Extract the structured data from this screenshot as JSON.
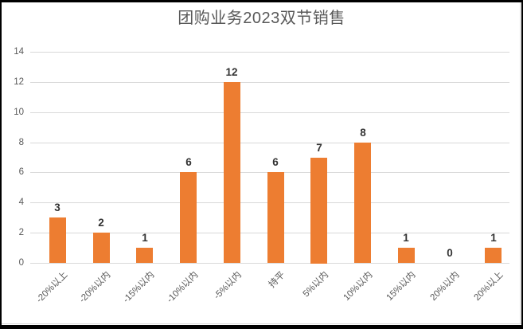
{
  "window": {
    "background_color": "#ffffff",
    "frame_color": "#000000",
    "sheet_edge_color": "#d6d6d6"
  },
  "chart_data": {
    "type": "bar",
    "title": "团购业务2023双节销售",
    "categories": [
      "-20%以上",
      "-20%以内",
      "-15%以内",
      "-10%以内",
      "-5%以内",
      "持平",
      "5%以内",
      "10%以内",
      "15%以内",
      "20%以内",
      "20%以上"
    ],
    "values": [
      3,
      2,
      1,
      6,
      12,
      6,
      7,
      8,
      1,
      0,
      1
    ],
    "data_labels": [
      "3",
      "2",
      "1",
      "6",
      "12",
      "6",
      "7",
      "8",
      "1",
      "0",
      "1"
    ],
    "y_ticks": [
      0,
      2,
      4,
      6,
      8,
      10,
      12,
      14
    ],
    "ylim": [
      0,
      14
    ],
    "xlabel": "",
    "ylabel": "",
    "grid": true,
    "legend_position": "none",
    "bar_color": "#ed7d31",
    "grid_color": "#d9d9d9",
    "axis_label_color": "#595959",
    "value_label_color": "#333333",
    "title_color": "#595959"
  }
}
